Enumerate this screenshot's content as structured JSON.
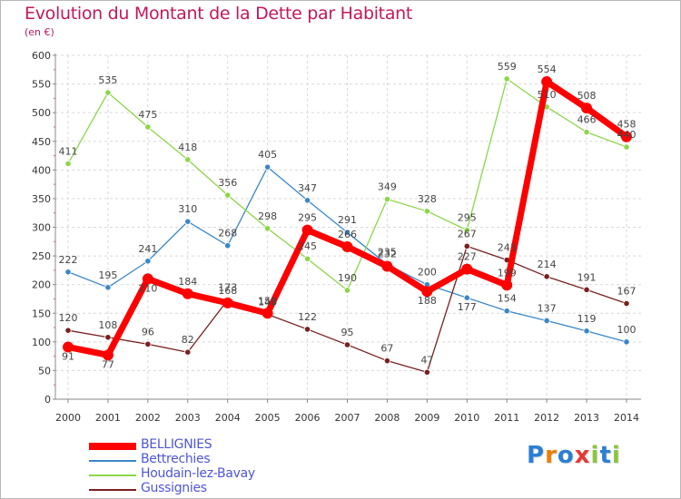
{
  "title": "Evolution du Montant de la Dette par Habitant",
  "subtitle": "(en €)",
  "logo": {
    "text": "Proxiti",
    "colors": [
      "#2a7fd4",
      "#ef7d00",
      "#2a7fd4",
      "#e53935",
      "#8cc63f",
      "#2a7fd4",
      "#8cc63f"
    ]
  },
  "chart_data": {
    "type": "line",
    "x": [
      "2000",
      "2001",
      "2002",
      "2003",
      "2004",
      "2005",
      "2006",
      "2007",
      "2008",
      "2009",
      "2010",
      "2011",
      "2012",
      "2013",
      "2014"
    ],
    "ylim": [
      0,
      600
    ],
    "yticks": [
      0,
      50,
      100,
      150,
      200,
      250,
      300,
      350,
      400,
      450,
      500,
      550,
      600
    ],
    "grid": true,
    "legend_position": "bottom-left",
    "series": [
      {
        "name": "BELLIGNIES",
        "color": "#ff0000",
        "values": [
          91,
          77,
          210,
          184,
          168,
          150,
          295,
          266,
          232,
          188,
          227,
          199,
          554,
          508,
          458
        ],
        "labels": [
          "91",
          "77",
          "210",
          "184",
          "168",
          "150",
          "295",
          "266",
          "232",
          "188",
          "227",
          "199",
          "554",
          "508",
          "458"
        ]
      },
      {
        "name": "Bettrechies",
        "color": "#3a87c8",
        "values": [
          222,
          195,
          241,
          310,
          268,
          405,
          347,
          291,
          235,
          200,
          177,
          154,
          137,
          119,
          100
        ],
        "labels": [
          "222",
          "195",
          "241",
          "310",
          "268",
          "405",
          "347",
          "291",
          "235",
          "200",
          "177",
          "154",
          "137",
          "119",
          "100"
        ]
      },
      {
        "name": "Houdain-lez-Bavay",
        "color": "#8cd64a",
        "values": [
          411,
          535,
          475,
          418,
          356,
          298,
          245,
          190,
          349,
          328,
          295,
          559,
          510,
          466,
          440
        ],
        "labels": [
          "411",
          "535",
          "475",
          "418",
          "356",
          "298",
          "245",
          "190",
          "349",
          "328",
          "295",
          "559",
          "510",
          "466",
          "440"
        ]
      },
      {
        "name": "Gussignies",
        "color": "#7a1f1f",
        "values": [
          120,
          108,
          96,
          82,
          173,
          148,
          122,
          95,
          67,
          47,
          267,
          243,
          214,
          191,
          167
        ],
        "labels": [
          "120",
          "108",
          "96",
          "82",
          "173",
          "148",
          "122",
          "95",
          "67",
          "47",
          "267",
          "243",
          "214",
          "191",
          "167"
        ]
      }
    ]
  }
}
